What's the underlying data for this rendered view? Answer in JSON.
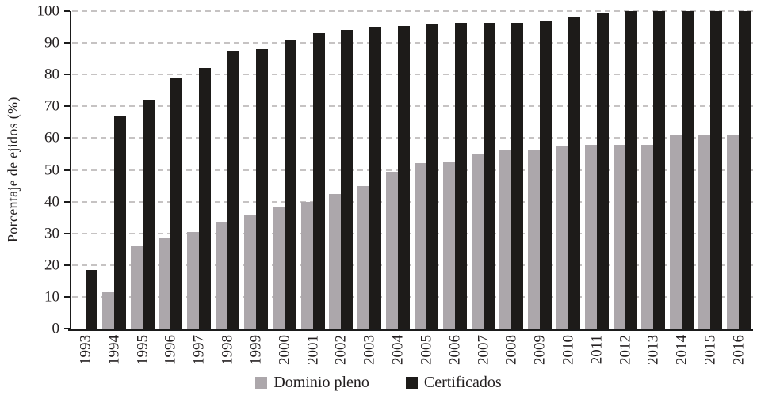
{
  "chart_data": {
    "type": "bar",
    "title": "",
    "xlabel": "",
    "ylabel": "Porcentaje de ejidos (%)",
    "ylim": [
      0,
      100
    ],
    "yticks": [
      0,
      10,
      20,
      30,
      40,
      50,
      60,
      70,
      80,
      90,
      100
    ],
    "grid": "horizontal dashed gridlines at every 10",
    "legend_position": "bottom-center",
    "categories": [
      "1993",
      "1994",
      "1995",
      "1996",
      "1997",
      "1998",
      "1999",
      "2000",
      "2001",
      "2002",
      "2003",
      "2004",
      "2005",
      "2006",
      "2007",
      "2008",
      "2009",
      "2010",
      "2011",
      "2012",
      "2013",
      "2014",
      "2015",
      "2016"
    ],
    "series": [
      {
        "name": "Dominio pleno",
        "color": "#aca7ab",
        "values": [
          0,
          11.5,
          26,
          28.5,
          30.5,
          33.5,
          36,
          38.5,
          40,
          42.5,
          45,
          49.5,
          52,
          52.5,
          55,
          56,
          56,
          57.5,
          57.8,
          57.8,
          57.8,
          61,
          61,
          61
        ]
      },
      {
        "name": "Certificados",
        "color": "#1d1b19",
        "values": [
          18.5,
          67,
          72,
          79,
          82,
          87.5,
          88,
          91,
          93,
          94,
          95,
          95.2,
          96,
          96.2,
          96.2,
          96.3,
          97,
          98,
          99.3,
          100,
          100,
          100,
          100,
          100
        ]
      }
    ]
  },
  "colors": {
    "axis": "#1b1b1b",
    "gridline": "#c6c3c3",
    "text": "#231f20",
    "background": "#ffffff"
  }
}
